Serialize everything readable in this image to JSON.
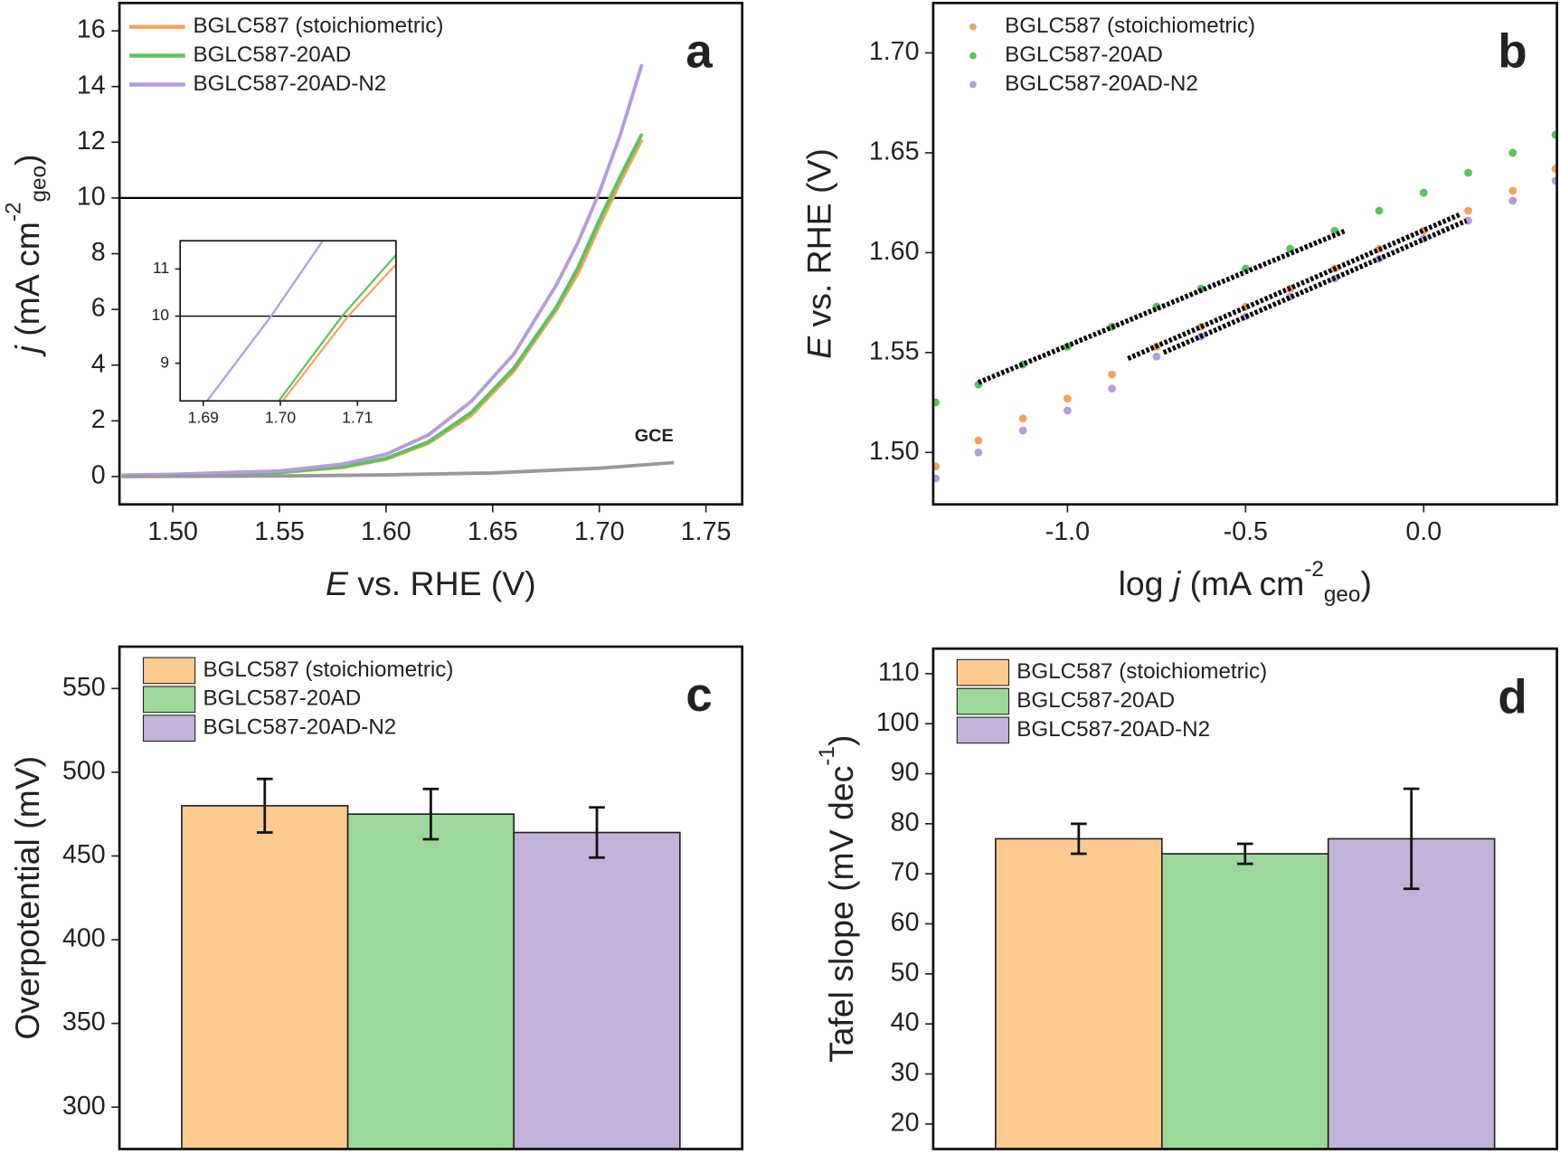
{
  "chart_data": [
    {
      "type": "line",
      "panel_label": "a",
      "legend": "upper left",
      "xlabel": [
        {
          "text": "E",
          "style": "italic"
        },
        {
          "text": " vs. RHE (V)"
        }
      ],
      "ylabel": [
        {
          "text": "j",
          "style": "italic"
        },
        {
          "text": " (mA cm"
        },
        {
          "text": "-2",
          "style": "sup"
        },
        {
          "text": "geo",
          "style": "sub"
        },
        {
          "text": ")"
        }
      ],
      "xlim": [
        1.475,
        1.767
      ],
      "ylim": [
        -1,
        17
      ],
      "xticks": [
        {
          "value": 1.5,
          "label": "1.50"
        },
        {
          "value": 1.55,
          "label": "1.55"
        },
        {
          "value": 1.6,
          "label": "1.60"
        },
        {
          "value": 1.65,
          "label": "1.65"
        },
        {
          "value": 1.7,
          "label": "1.70"
        },
        {
          "value": 1.75,
          "label": "1.75"
        }
      ],
      "yticks": [
        0,
        2,
        4,
        6,
        8,
        10,
        12,
        14,
        16
      ],
      "hlines": [
        10
      ],
      "annotations": [
        "GCE"
      ],
      "series": [
        {
          "name": "BGLC587 (stoichiometric)",
          "color": "#f5a25d",
          "x": [
            1.476,
            1.5,
            1.55,
            1.58,
            1.6,
            1.62,
            1.64,
            1.66,
            1.68,
            1.69,
            1.7,
            1.71,
            1.72
          ],
          "values": [
            0.04,
            0.06,
            0.14,
            0.33,
            0.62,
            1.2,
            2.2,
            3.8,
            6.0,
            7.3,
            9.0,
            10.6,
            12.1
          ]
        },
        {
          "name": "BGLC587-20AD",
          "color": "#5cc25c",
          "x": [
            1.476,
            1.5,
            1.55,
            1.58,
            1.6,
            1.62,
            1.64,
            1.66,
            1.68,
            1.69,
            1.7,
            1.71,
            1.72
          ],
          "values": [
            0.04,
            0.06,
            0.15,
            0.35,
            0.65,
            1.25,
            2.3,
            3.9,
            6.1,
            7.5,
            9.2,
            10.8,
            12.3
          ]
        },
        {
          "name": "BGLC587-20AD-N2",
          "color": "#b49ddb",
          "x": [
            1.476,
            1.5,
            1.55,
            1.58,
            1.6,
            1.62,
            1.64,
            1.66,
            1.68,
            1.69,
            1.7,
            1.71,
            1.72
          ],
          "values": [
            0.05,
            0.08,
            0.2,
            0.45,
            0.8,
            1.5,
            2.7,
            4.4,
            6.9,
            8.4,
            10.2,
            12.3,
            14.8
          ]
        },
        {
          "color": "#999999",
          "x": [
            1.476,
            1.55,
            1.6,
            1.65,
            1.7,
            1.735
          ],
          "values": [
            0,
            0.02,
            0.06,
            0.13,
            0.3,
            0.5
          ]
        }
      ]
    },
    {
      "type": "line",
      "inset": true,
      "xlim": [
        1.687,
        1.715
      ],
      "ylim": [
        8.2,
        11.6
      ],
      "xticks": [
        {
          "value": 1.69,
          "label": "1.69"
        },
        {
          "value": 1.7,
          "label": "1.70"
        },
        {
          "value": 1.71,
          "label": "1.71"
        }
      ],
      "yticks": [
        9,
        10,
        11
      ],
      "hlines": [
        10
      ],
      "series": [
        {
          "color": "#f5a25d",
          "x": [
            1.7003,
            1.7088,
            1.715
          ],
          "values": [
            8.2,
            10,
            11.1
          ]
        },
        {
          "color": "#5cc25c",
          "x": [
            1.6998,
            1.708,
            1.715
          ],
          "values": [
            8.2,
            10,
            11.3
          ]
        },
        {
          "color": "#b49ddb",
          "x": [
            1.6905,
            1.6988,
            1.7055
          ],
          "values": [
            8.2,
            10,
            11.6
          ]
        }
      ]
    },
    {
      "type": "scatter",
      "panel_label": "b",
      "legend": "upper left",
      "xlabel": [
        {
          "text": "log "
        },
        {
          "text": "j",
          "style": "italic"
        },
        {
          "text": " (mA cm"
        },
        {
          "text": "-2",
          "style": "sup"
        },
        {
          "text": "geo",
          "style": "sub"
        },
        {
          "text": ")"
        }
      ],
      "ylabel": [
        {
          "text": "E",
          "style": "italic"
        },
        {
          "text": " vs. RHE (V)"
        }
      ],
      "xlim": [
        -1.377,
        0.374
      ],
      "ylim": [
        1.474,
        1.725
      ],
      "xticks": [
        {
          "value": -1,
          "label": "-1.0"
        },
        -0.5,
        {
          "value": 0,
          "label": "0.0"
        }
      ],
      "yticks": [
        {
          "value": 1.5,
          "label": "1.50"
        },
        1.55,
        {
          "value": 1.6,
          "label": "1.60"
        },
        1.65,
        {
          "value": 1.7,
          "label": "1.70"
        }
      ],
      "x": [
        -1.37,
        -1.25,
        -1.125,
        -1.0,
        -0.875,
        -0.75,
        -0.625,
        -0.5,
        -0.375,
        -0.25,
        -0.125,
        0,
        0.125,
        0.25,
        0.37
      ],
      "series": [
        {
          "name": "BGLC587 (stoichiometric)",
          "color": "#f5a25d",
          "values": [
            1.493,
            1.506,
            1.517,
            1.527,
            1.539,
            1.553,
            1.563,
            1.573,
            1.582,
            1.592,
            1.602,
            1.611,
            1.621,
            1.631,
            1.642
          ]
        },
        {
          "name": "BGLC587-20AD",
          "color": "#5cc25c",
          "values": [
            1.525,
            1.534,
            1.544,
            1.553,
            1.563,
            1.573,
            1.582,
            1.592,
            1.602,
            1.611,
            1.621,
            1.63,
            1.64,
            1.65,
            1.659
          ]
        },
        {
          "name": "BGLC587-20AD-N2",
          "color": "#b49ddb",
          "values": [
            1.487,
            1.5,
            1.511,
            1.521,
            1.532,
            1.548,
            1.558,
            1.568,
            1.578,
            1.587,
            1.597,
            1.607,
            1.616,
            1.626,
            1.636
          ]
        }
      ],
      "fit_color": "#000000",
      "fits": [
        {
          "x": [
            -1.25,
            -0.22
          ],
          "values": [
            1.535,
            1.611
          ]
        },
        {
          "x": [
            -0.83,
            0.1
          ],
          "values": [
            1.547,
            1.619
          ]
        },
        {
          "x": [
            -0.73,
            0.12
          ],
          "values": [
            1.55,
            1.616
          ]
        }
      ]
    },
    {
      "type": "bar",
      "panel_label": "c",
      "legend": "upper left",
      "ylabel": [
        {
          "text": "Overpotential (mV)"
        }
      ],
      "ylim": [
        275,
        575
      ],
      "yticks": [
        300,
        350,
        400,
        450,
        500,
        550
      ],
      "series": [
        {
          "name": "BGLC587 (stoichiometric)",
          "color": "#fdcb8f",
          "values": [
            480
          ],
          "errors": [
            16
          ]
        },
        {
          "name": "BGLC587-20AD",
          "color": "#9dd89b",
          "values": [
            475
          ],
          "errors": [
            15
          ]
        },
        {
          "name": "BGLC587-20AD-N2",
          "color": "#c3b3da",
          "values": [
            464
          ],
          "errors": [
            15
          ]
        }
      ]
    },
    {
      "type": "bar",
      "panel_label": "d",
      "legend": "upper left",
      "ylabel": [
        {
          "text": "Tafel slope (mV dec"
        },
        {
          "text": "-1",
          "style": "sup"
        },
        {
          "text": ")"
        }
      ],
      "ylim": [
        15,
        115
      ],
      "yticks": [
        20,
        30,
        40,
        50,
        60,
        70,
        80,
        90,
        100,
        110
      ],
      "series": [
        {
          "name": "BGLC587 (stoichiometric)",
          "color": "#fdcb8f",
          "values": [
            77
          ],
          "errors": [
            3
          ]
        },
        {
          "name": "BGLC587-20AD",
          "color": "#9dd89b",
          "values": [
            74
          ],
          "errors": [
            2
          ]
        },
        {
          "name": "BGLC587-20AD-N2",
          "color": "#c3b3da",
          "values": [
            77
          ],
          "errors": [
            10
          ]
        }
      ]
    }
  ]
}
